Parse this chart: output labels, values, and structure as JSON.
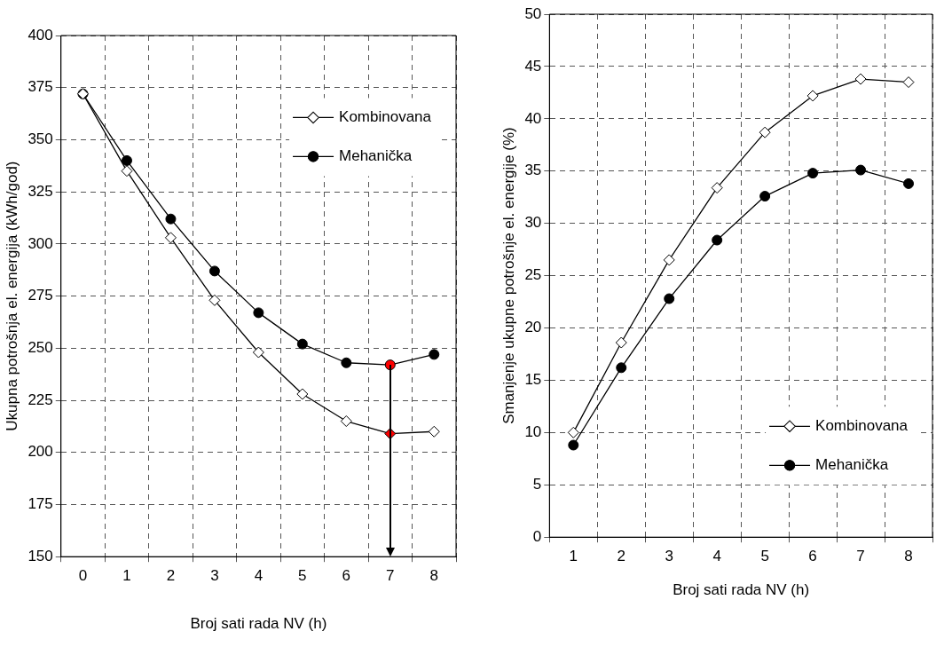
{
  "chart_data": [
    {
      "type": "line",
      "xlabel": "Broj sati rada NV (h)",
      "ylabel": "Ukupna potrošnja el. energija (kWh/god)",
      "categories": [
        "0",
        "1",
        "2",
        "3",
        "4",
        "5",
        "6",
        "7",
        "8"
      ],
      "series": [
        {
          "name": "Kombinovana",
          "color": "#000000",
          "marker": "diamond",
          "colors": [
            "#ffffff",
            "#ffffff",
            "#ffffff",
            "#ffffff",
            "#ffffff",
            "#ffffff",
            "#ffffff",
            "#ff0000",
            "#ffffff"
          ],
          "values": [
            372,
            335,
            303,
            273,
            248,
            228,
            215,
            209,
            210
          ]
        },
        {
          "name": "Mehanička",
          "color": "#000000",
          "marker": "circle",
          "colors": [
            "#000000",
            "#000000",
            "#000000",
            "#000000",
            "#000000",
            "#000000",
            "#000000",
            "#ff0000",
            "#000000"
          ],
          "values": [
            372,
            340,
            312,
            287,
            267,
            252,
            243,
            242,
            247
          ]
        }
      ],
      "ylim": [
        150,
        400
      ],
      "yticks": [
        150,
        175,
        200,
        225,
        250,
        275,
        300,
        325,
        350,
        375,
        400
      ],
      "grid": true,
      "legend": "top right",
      "line_style": "solid"
    },
    {
      "type": "line",
      "xlabel": "Broj sati rada NV (h)",
      "ylabel": "Smanjenje ukupne potrošnje el. energije (%)",
      "categories": [
        "1",
        "2",
        "3",
        "4",
        "5",
        "6",
        "7",
        "8"
      ],
      "series": [
        {
          "name": "Kombinovana",
          "color": "#000000",
          "marker": "diamond",
          "colors": [
            "#ffffff",
            "#ffffff",
            "#ffffff",
            "#ffffff",
            "#ffffff",
            "#ffffff",
            "#ffffff",
            "#ffffff"
          ],
          "values": [
            10,
            18.6,
            26.5,
            33.4,
            38.7,
            42.2,
            43.8,
            43.5
          ]
        },
        {
          "name": "Mehanička",
          "color": "#000000",
          "marker": "circle",
          "colors": [
            "#000000",
            "#000000",
            "#000000",
            "#000000",
            "#000000",
            "#000000",
            "#000000",
            "#000000"
          ],
          "values": [
            8.8,
            16.2,
            22.8,
            28.4,
            32.6,
            34.8,
            35.1,
            33.8
          ]
        }
      ],
      "ylim": [
        0,
        50
      ],
      "yticks": [
        0,
        5,
        10,
        15,
        20,
        25,
        30,
        35,
        40,
        45,
        50
      ],
      "grid": true,
      "legend": "bottom right",
      "line_style": "solid"
    }
  ]
}
